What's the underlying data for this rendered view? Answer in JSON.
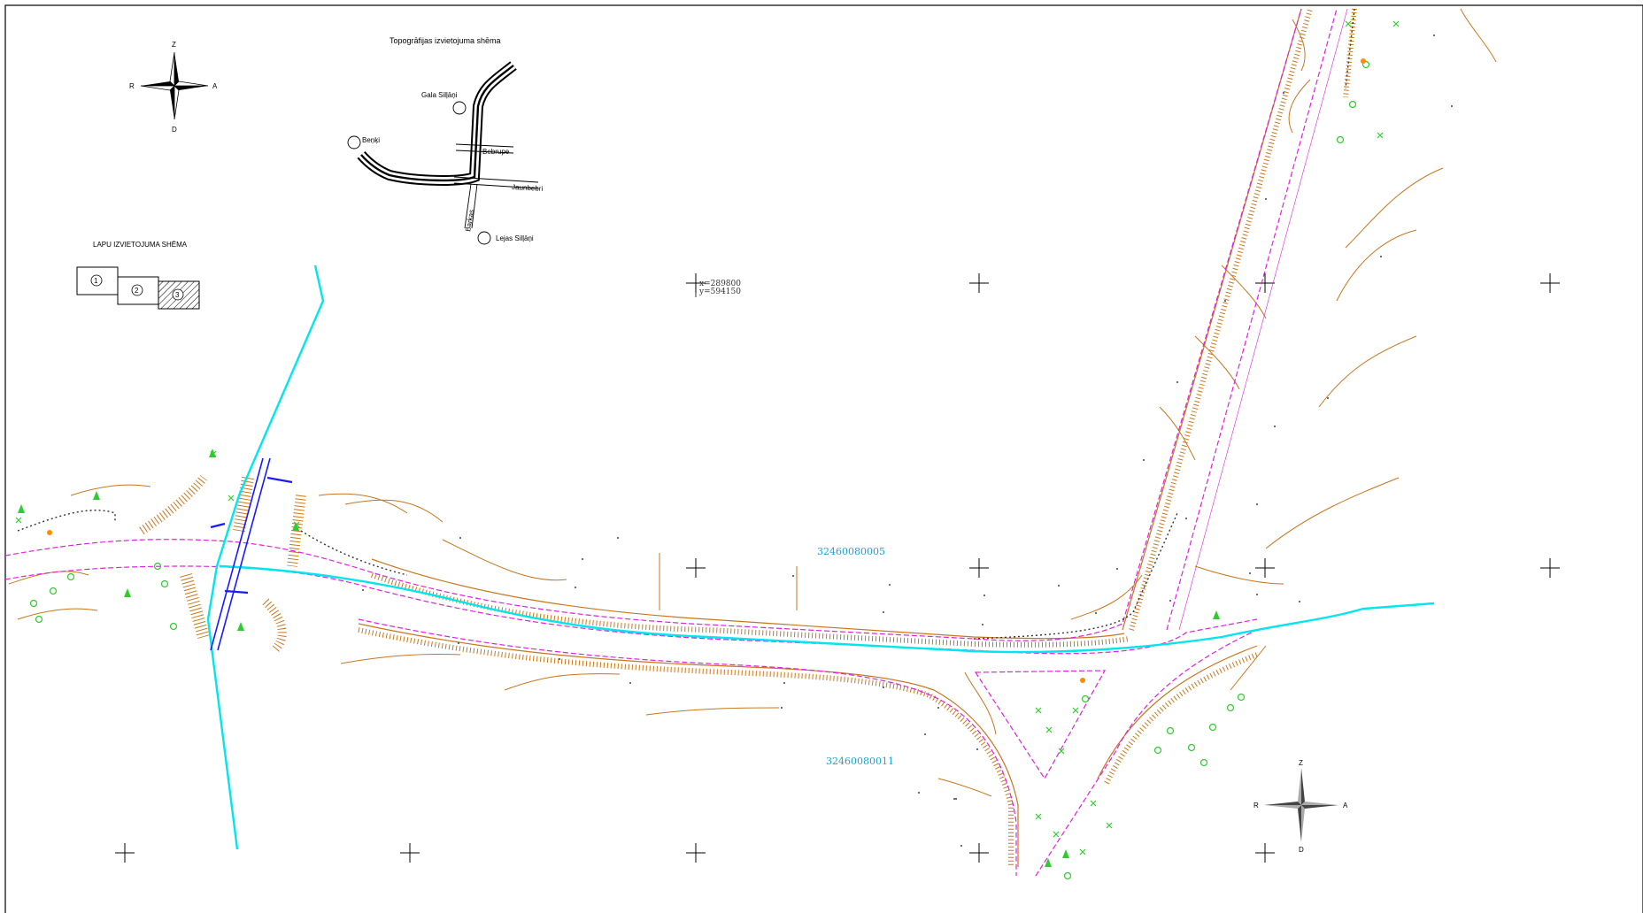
{
  "compass_main": {
    "north": "Z",
    "south": "D",
    "east": "A",
    "west": "R"
  },
  "compass_map": {
    "north": "Z",
    "south": "D",
    "east": "A",
    "west": "R"
  },
  "location_scheme": {
    "title": "Topogrāfijas izvietojuma shēma",
    "places": [
      "Gala Silļāņi",
      "Beņķi",
      "Lejas Silļāņi"
    ],
    "roads": [
      "Bebrupe",
      "Jaunbebri",
      "Barkas"
    ]
  },
  "sheet_scheme": {
    "title": "LAPU IZVIETOJUMA SHĒMA",
    "sheets": [
      "1",
      "2",
      "3"
    ],
    "current_sheet": "3"
  },
  "coordinate_label": {
    "x": "x=289800",
    "y": "y=594150"
  },
  "parcels": [
    "32460080005",
    "32460080011"
  ],
  "colors": {
    "frame": "#000000",
    "stream": "#00e5ee",
    "boundary": "#e020e0",
    "slope": "#c8761e",
    "vegetation": "#2ecc2e",
    "culvert": "#1a1aff",
    "parcel_text": "#1aa3d6",
    "marker": "#ff8c00"
  },
  "icons": [
    "north-arrow-icon",
    "tree-icon",
    "shrub-icon",
    "grid-cross-icon"
  ]
}
